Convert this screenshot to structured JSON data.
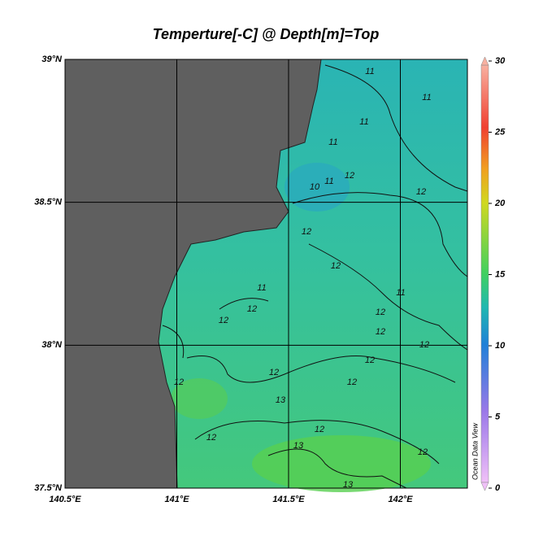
{
  "title": "Temperture[-C] @ Depth[m]=Top",
  "map": {
    "xlim": [
      140.5,
      142.3
    ],
    "ylim": [
      37.5,
      39
    ],
    "xticks": [
      {
        "value": 140.5,
        "label": "140.5°E"
      },
      {
        "value": 141,
        "label": "141°E"
      },
      {
        "value": 141.5,
        "label": "141.5°E"
      },
      {
        "value": 142,
        "label": "142°E"
      }
    ],
    "yticks": [
      {
        "value": 37.5,
        "label": "37.5°N"
      },
      {
        "value": 38,
        "label": "38°N"
      },
      {
        "value": 38.5,
        "label": "38.5°N"
      },
      {
        "value": 39,
        "label": "39°N"
      }
    ],
    "grid": true,
    "land_color": "#5f5f5f",
    "contour_labels": [
      "11",
      "11",
      "11",
      "11",
      "10",
      "11",
      "12",
      "12",
      "12",
      "12",
      "11",
      "12",
      "12",
      "11",
      "12",
      "12",
      "12",
      "12",
      "12",
      "12",
      "13",
      "12",
      "12",
      "12",
      "13",
      "12",
      "13"
    ]
  },
  "colorbar": {
    "lim": [
      0,
      30
    ],
    "ticks": [
      0,
      5,
      10,
      15,
      20,
      25,
      30
    ]
  },
  "watermark": "Ocean Data View"
}
